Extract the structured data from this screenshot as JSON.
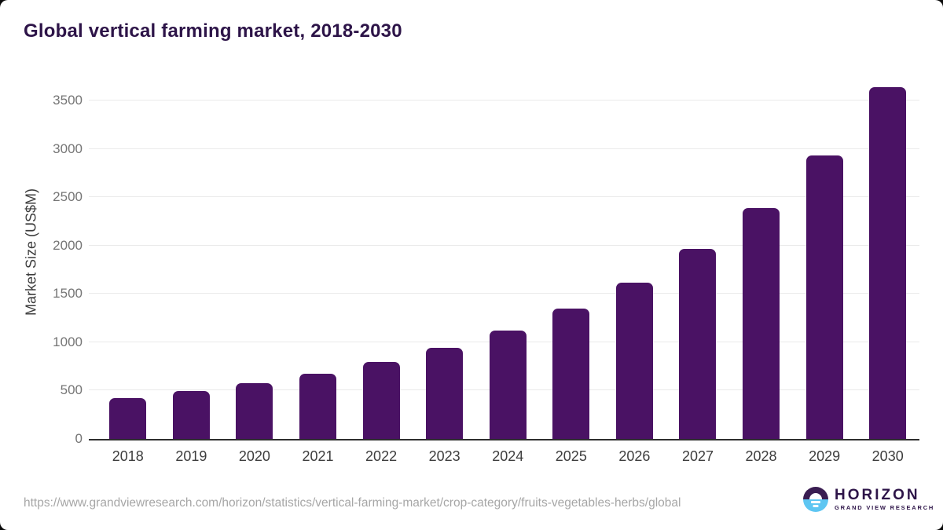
{
  "chart_data": {
    "type": "bar",
    "title": "Global vertical farming market, 2018-2030",
    "ylabel": "Market Size (US$M)",
    "xlabel": "",
    "categories": [
      "2018",
      "2019",
      "2020",
      "2021",
      "2022",
      "2023",
      "2024",
      "2025",
      "2026",
      "2027",
      "2028",
      "2029",
      "2030"
    ],
    "values": [
      425,
      497,
      578,
      676,
      798,
      946,
      1125,
      1352,
      1616,
      1964,
      2386,
      2932,
      3642
    ],
    "yticks": [
      0,
      500,
      1000,
      1500,
      2000,
      2500,
      3000,
      3500
    ],
    "ylim": [
      0,
      3690
    ],
    "grid": "horizontal",
    "legend": "none",
    "bar_color": "#4a1264"
  },
  "colors": {
    "title": "#2d1448",
    "bar": "#4a1264",
    "gridline": "#eaeaea",
    "axis_line": "#2e2e2e",
    "y_tick_text": "#757575",
    "x_tick_text": "#3d3d3d",
    "url_text": "#a6a6a6",
    "logo_purple": "#3a1d52",
    "logo_blue": "#5ec6f2"
  },
  "footer": {
    "source_url": "https://www.grandviewresearch.com/horizon/statistics/vertical-farming-market/crop-category/fruits-vegetables-herbs/global",
    "logo": {
      "title": "HORIZON",
      "subtitle": "GRAND VIEW RESEARCH"
    }
  }
}
